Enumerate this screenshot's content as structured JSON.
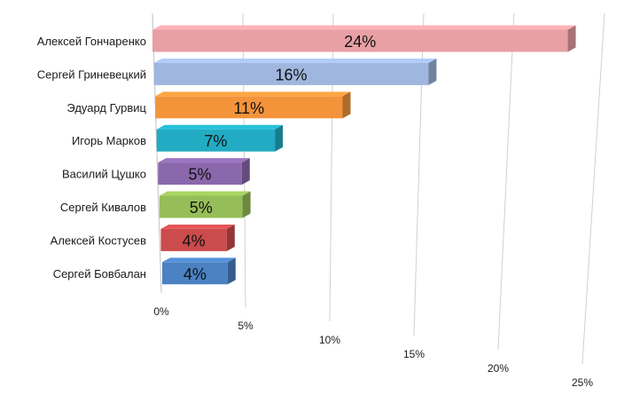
{
  "chart_data": {
    "type": "bar",
    "orientation": "horizontal",
    "style": "3d",
    "title": "",
    "xlabel": "",
    "ylabel": "",
    "categories": [
      "Алексей Гончаренко",
      "Сергей Гриневецкий",
      "Эдуард Гурвиц",
      "Игорь Марков",
      "Василий Цушко",
      "Сергей Кивалов",
      "Алексей Костусев",
      "Сергей Бовбалан"
    ],
    "values": [
      24,
      16,
      11,
      7,
      5,
      5,
      4,
      4
    ],
    "value_labels": [
      "24%",
      "16%",
      "11%",
      "7%",
      "5%",
      "5%",
      "4%",
      "4%"
    ],
    "colors": [
      "#e8a0a5",
      "#9fb6de",
      "#f3943b",
      "#22acc3",
      "#8b68ab",
      "#96be58",
      "#cc4b4c",
      "#4a82c2"
    ],
    "xlim": [
      0,
      25
    ],
    "x_ticks": [
      0,
      5,
      10,
      15,
      20,
      25
    ],
    "x_tick_labels": [
      "0%",
      "5%",
      "10%",
      "15%",
      "20%",
      "25%"
    ],
    "grid": true,
    "legend": "none"
  }
}
